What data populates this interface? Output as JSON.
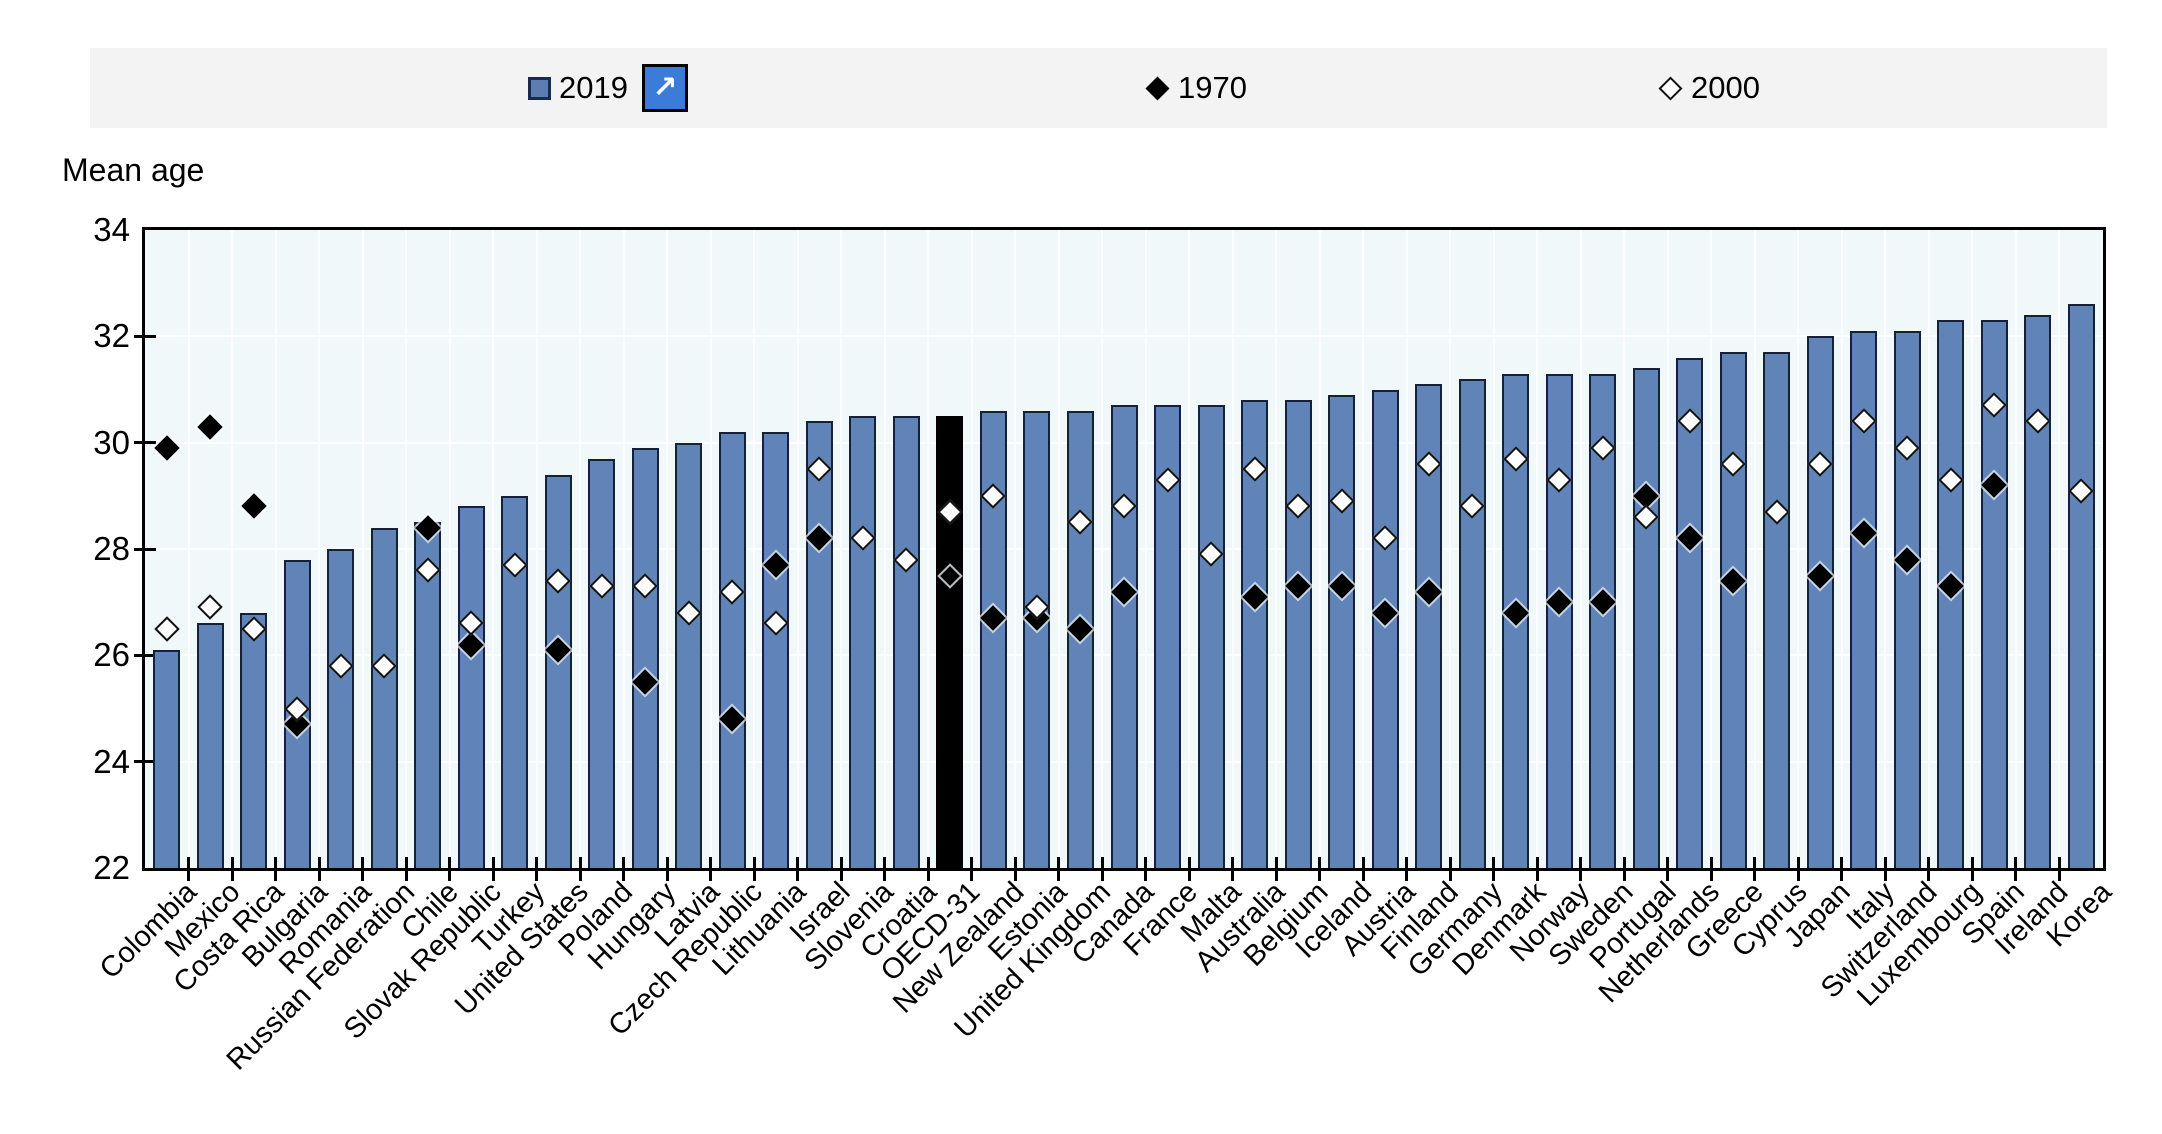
{
  "legend": {
    "items": [
      {
        "label": "2019",
        "marker": "blue-square"
      },
      {
        "label": "1970",
        "marker": "black-filled-diamond"
      },
      {
        "label": "2000",
        "marker": "open-diamond"
      }
    ],
    "expand_button_glyph": "↗"
  },
  "y_axis": {
    "title": "Mean age",
    "ticks": [
      22,
      24,
      26,
      28,
      30,
      32,
      34
    ]
  },
  "colors": {
    "bar_fill": "#6084b8",
    "bar_border": "#15213b",
    "highlight_bar": "#000000",
    "marker_1970": "#000000",
    "marker_2000": "#ffffff",
    "plot_background": "#f1f8fa",
    "legend_background": "#f3f3f3",
    "expand_button": "#3c7cd9"
  },
  "chart_data": {
    "type": "bar",
    "title": "",
    "ylabel": "Mean age",
    "xlabel": "",
    "ylim": [
      22,
      34
    ],
    "grid": true,
    "legend_position": "top",
    "highlight_category": "OECD-31",
    "categories": [
      "Colombia",
      "Mexico",
      "Costa Rica",
      "Bulgaria",
      "Romania",
      "Russian Federation",
      "Chile",
      "Slovak Republic",
      "Turkey",
      "United States",
      "Poland",
      "Hungary",
      "Latvia",
      "Czech Republic",
      "Lithuania",
      "Israel",
      "Slovenia",
      "Croatia",
      "OECD-31",
      "New Zealand",
      "Estonia",
      "United Kingdom",
      "Canada",
      "France",
      "Malta",
      "Australia",
      "Belgium",
      "Iceland",
      "Austria",
      "Finland",
      "Germany",
      "Denmark",
      "Norway",
      "Sweden",
      "Portugal",
      "Netherlands",
      "Greece",
      "Cyprus",
      "Japan",
      "Italy",
      "Switzerland",
      "Luxembourg",
      "Spain",
      "Ireland",
      "Korea"
    ],
    "series": [
      {
        "name": "2019",
        "style": "bar",
        "values": [
          26.1,
          26.6,
          26.8,
          27.8,
          28.0,
          28.4,
          28.5,
          28.8,
          29.0,
          29.4,
          29.7,
          29.9,
          30.0,
          30.2,
          30.2,
          30.4,
          30.5,
          30.5,
          30.5,
          30.6,
          30.6,
          30.6,
          30.7,
          30.7,
          30.7,
          30.8,
          30.8,
          30.9,
          31.0,
          31.1,
          31.2,
          31.3,
          31.3,
          31.3,
          31.4,
          31.6,
          31.7,
          31.7,
          32.0,
          32.1,
          32.1,
          32.3,
          32.3,
          32.4,
          32.6
        ]
      },
      {
        "name": "1970",
        "style": "filled-diamond",
        "values": [
          29.9,
          30.3,
          28.8,
          24.7,
          null,
          null,
          28.4,
          26.2,
          null,
          26.1,
          null,
          25.5,
          null,
          24.8,
          27.7,
          28.2,
          null,
          null,
          27.5,
          26.7,
          26.7,
          26.5,
          27.2,
          null,
          null,
          27.1,
          27.3,
          27.3,
          26.8,
          27.2,
          null,
          26.8,
          27.0,
          27.0,
          29.0,
          28.2,
          27.4,
          null,
          27.5,
          28.3,
          27.8,
          27.3,
          29.2,
          null,
          null
        ]
      },
      {
        "name": "2000",
        "style": "open-diamond",
        "values": [
          26.5,
          26.9,
          26.5,
          25.0,
          25.8,
          25.8,
          27.6,
          26.6,
          27.7,
          27.4,
          27.3,
          27.3,
          26.8,
          27.2,
          26.6,
          29.5,
          28.2,
          27.8,
          28.7,
          29.0,
          26.9,
          28.5,
          28.8,
          29.3,
          27.9,
          29.5,
          28.8,
          28.9,
          28.2,
          29.6,
          28.8,
          29.7,
          29.3,
          29.9,
          28.6,
          30.4,
          29.6,
          28.7,
          29.6,
          30.4,
          29.9,
          29.3,
          30.7,
          30.4,
          29.1
        ]
      }
    ]
  }
}
